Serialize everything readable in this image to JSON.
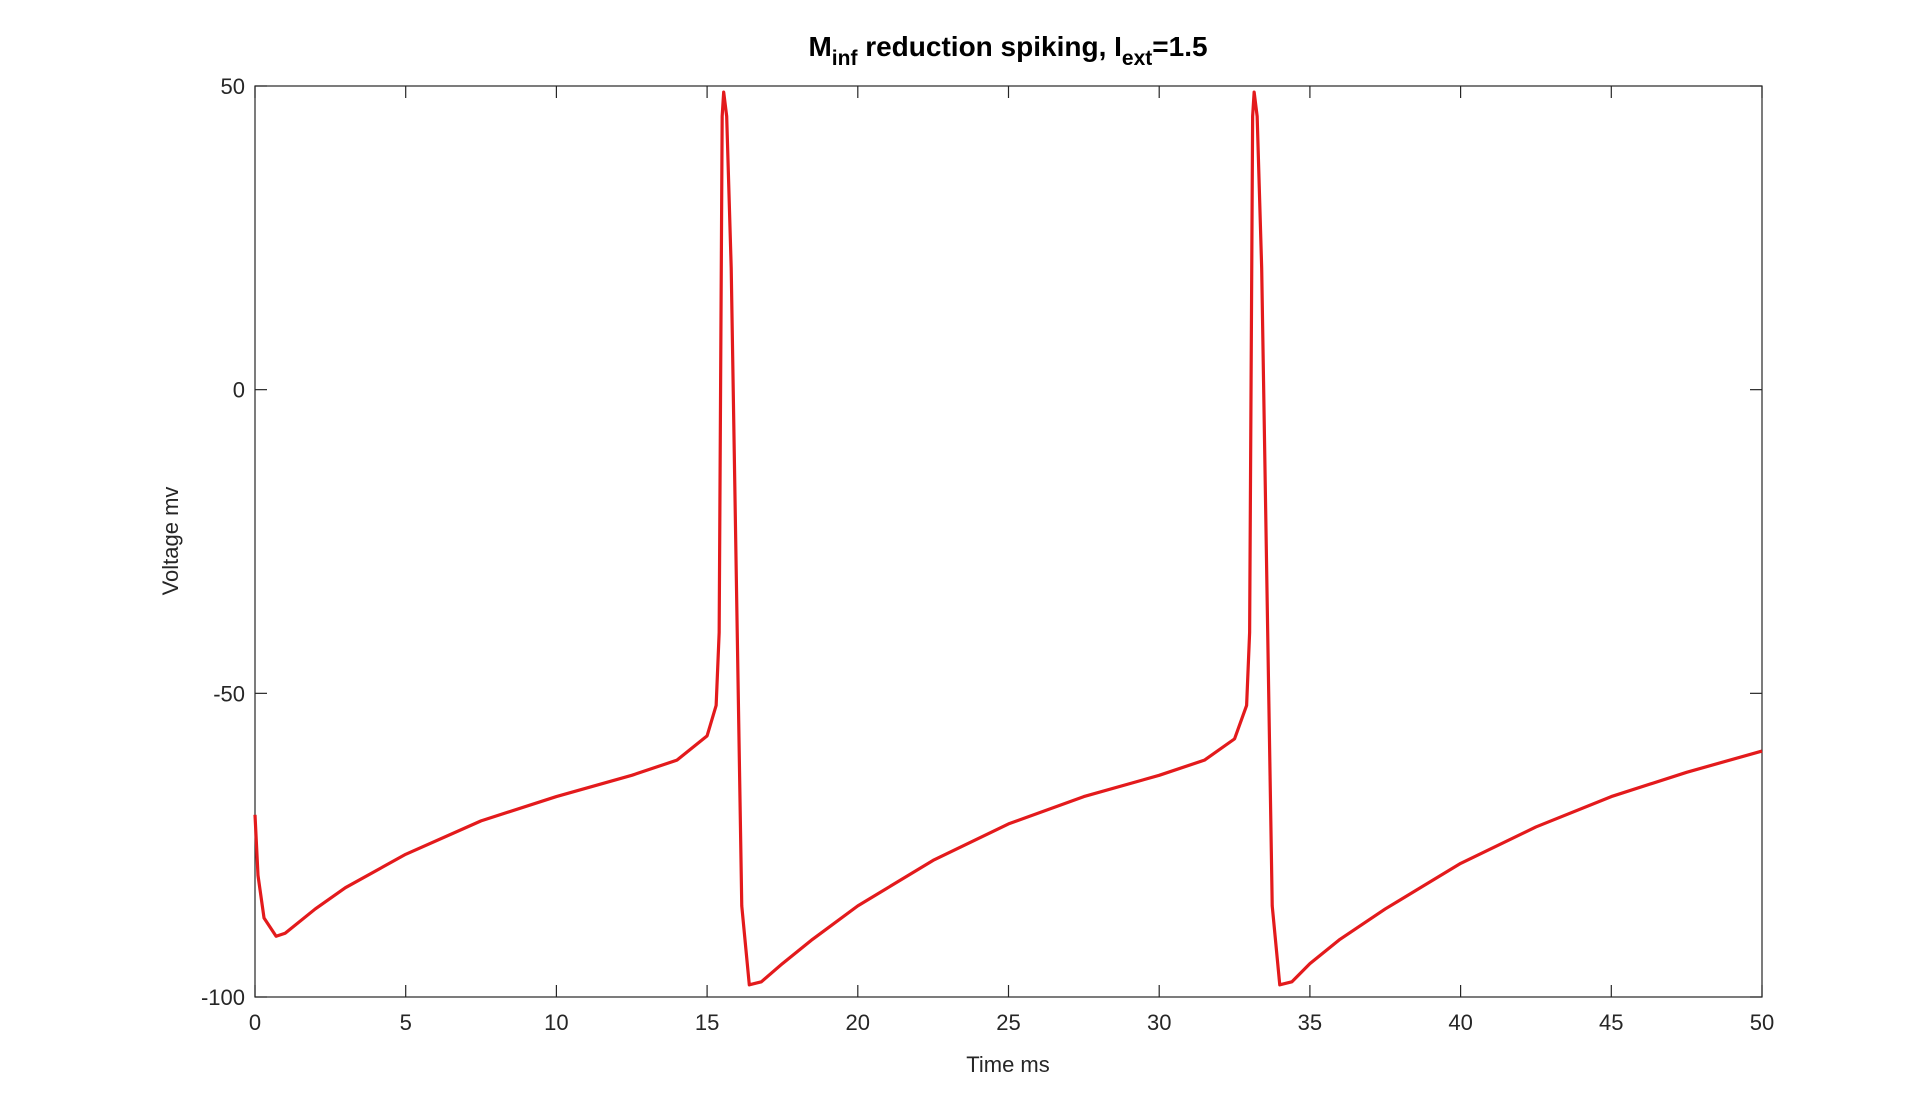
{
  "chart_data": {
    "type": "line",
    "title": [
      "M",
      "inf",
      " reduction spiking, I",
      "ext",
      "=1.5"
    ],
    "x_label": "Time ms",
    "y_label": "Voltage mv",
    "xlim": [
      0,
      50
    ],
    "ylim": [
      -100,
      50
    ],
    "xticks": [
      0,
      5,
      10,
      15,
      20,
      25,
      30,
      35,
      40,
      45,
      50
    ],
    "yticks": [
      -100,
      -50,
      0,
      50
    ],
    "series": [
      {
        "color": "#e31a1c",
        "x": [
          0,
          0.1,
          0.3,
          0.7,
          1,
          2,
          3,
          5,
          7.5,
          10,
          12.5,
          14,
          15,
          15.3,
          15.4,
          15.5,
          15.55,
          15.65,
          15.8,
          16,
          16.15,
          16.4,
          16.8,
          17.5,
          18.5,
          20,
          22.5,
          25,
          27.5,
          30,
          31.5,
          32.5,
          32.9,
          33.0,
          33.1,
          33.15,
          33.25,
          33.4,
          33.6,
          33.75,
          34,
          34.4,
          35,
          36,
          37.5,
          40,
          42.5,
          45,
          47.5,
          50
        ],
        "values": [
          -70,
          -80,
          -87,
          -90,
          -89.5,
          -85.5,
          -82,
          -76.5,
          -71,
          -67,
          -63.5,
          -61,
          -57,
          -52,
          -40,
          45,
          49,
          45,
          20,
          -40,
          -85,
          -98,
          -97.5,
          -94.5,
          -90.5,
          -85,
          -77.5,
          -71.5,
          -67,
          -63.5,
          -61,
          -57.5,
          -52,
          -40,
          45,
          49,
          45,
          20,
          -40,
          -85,
          -98,
          -97.5,
          -94.5,
          -90.5,
          -85.5,
          -78,
          -72,
          -67,
          -63,
          -59.5
        ]
      }
    ]
  }
}
